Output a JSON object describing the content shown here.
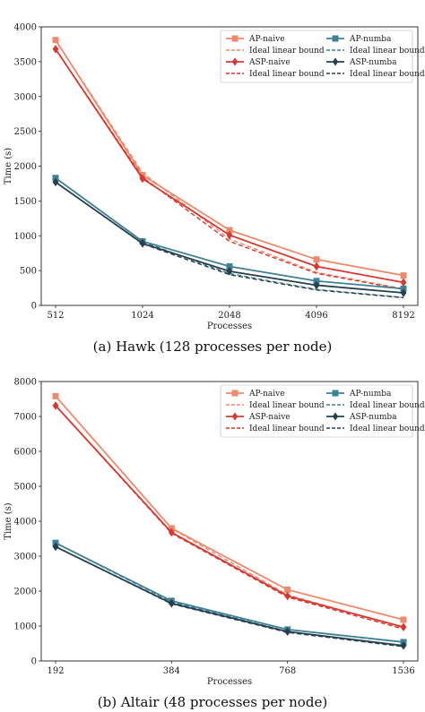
{
  "colors": {
    "ap_naive": "#ee8a6c",
    "asp_naive": "#d9372f",
    "ap_numba": "#3f8196",
    "asp_numba": "#27404e"
  },
  "chart_data": [
    {
      "type": "line",
      "title": "",
      "caption": "(a) Hawk (128 processes per node)",
      "xlabel": "Processes",
      "ylabel": "Time (s)",
      "x": [
        512,
        1024,
        2048,
        4096,
        8192
      ],
      "x_scale": "log2",
      "ylim": [
        0,
        4000
      ],
      "yticks": [
        0,
        500,
        1000,
        1500,
        2000,
        2500,
        3000,
        3500,
        4000
      ],
      "grid": false,
      "legend_position": "top-right",
      "series": [
        {
          "name": "AP-naive",
          "key": "ap_naive",
          "marker": "square",
          "style": "solid",
          "values": [
            3810,
            1870,
            1080,
            660,
            430
          ]
        },
        {
          "name": "Ideal linear bound",
          "key": "ap_naive",
          "marker": "none",
          "style": "dashed",
          "values": [
            3810,
            1905,
            952,
            476,
            238
          ]
        },
        {
          "name": "ASP-naive",
          "key": "asp_naive",
          "marker": "diamond",
          "style": "solid",
          "values": [
            3680,
            1820,
            1010,
            560,
            330
          ]
        },
        {
          "name": "Ideal linear bound",
          "key": "asp_naive",
          "marker": "none",
          "style": "dashed",
          "values": [
            3680,
            1840,
            920,
            460,
            230
          ]
        },
        {
          "name": "AP-numba",
          "key": "ap_numba",
          "marker": "square",
          "style": "solid",
          "values": [
            1830,
            920,
            560,
            350,
            240
          ]
        },
        {
          "name": "Ideal linear bound",
          "key": "ap_numba",
          "marker": "none",
          "style": "dashed",
          "values": [
            1830,
            915,
            457,
            229,
            114
          ]
        },
        {
          "name": "ASP-numba",
          "key": "asp_numba",
          "marker": "diamond",
          "style": "solid",
          "values": [
            1770,
            890,
            490,
            290,
            180
          ]
        },
        {
          "name": "Ideal linear bound",
          "key": "asp_numba",
          "marker": "none",
          "style": "dashed",
          "values": [
            1770,
            885,
            442,
            221,
            111
          ]
        }
      ]
    },
    {
      "type": "line",
      "title": "",
      "caption": "(b) Altair (48 processes per node)",
      "xlabel": "Processes",
      "ylabel": "Time (s)",
      "x": [
        192,
        384,
        768,
        1536
      ],
      "x_scale": "log2",
      "ylim": [
        0,
        8000
      ],
      "yticks": [
        0,
        1000,
        2000,
        3000,
        4000,
        5000,
        6000,
        7000,
        8000
      ],
      "grid": false,
      "legend_position": "top-right",
      "series": [
        {
          "name": "AP-naive",
          "key": "ap_naive",
          "marker": "square",
          "style": "solid",
          "values": [
            7580,
            3800,
            2040,
            1180
          ]
        },
        {
          "name": "Ideal linear bound",
          "key": "ap_naive",
          "marker": "none",
          "style": "dashed",
          "values": [
            7580,
            3790,
            1895,
            947
          ]
        },
        {
          "name": "ASP-naive",
          "key": "asp_naive",
          "marker": "diamond",
          "style": "solid",
          "values": [
            7310,
            3680,
            1860,
            970
          ]
        },
        {
          "name": "Ideal linear bound",
          "key": "asp_naive",
          "marker": "none",
          "style": "dashed",
          "values": [
            7310,
            3655,
            1827,
            914
          ]
        },
        {
          "name": "AP-numba",
          "key": "ap_numba",
          "marker": "square",
          "style": "solid",
          "values": [
            3380,
            1720,
            900,
            540
          ]
        },
        {
          "name": "Ideal linear bound",
          "key": "ap_numba",
          "marker": "none",
          "style": "dashed",
          "values": [
            3380,
            1690,
            845,
            422
          ]
        },
        {
          "name": "ASP-numba",
          "key": "asp_numba",
          "marker": "diamond",
          "style": "solid",
          "values": [
            3270,
            1650,
            840,
            440
          ]
        },
        {
          "name": "Ideal linear bound",
          "key": "asp_numba",
          "marker": "none",
          "style": "dashed",
          "values": [
            3270,
            1635,
            817,
            409
          ]
        }
      ]
    }
  ]
}
